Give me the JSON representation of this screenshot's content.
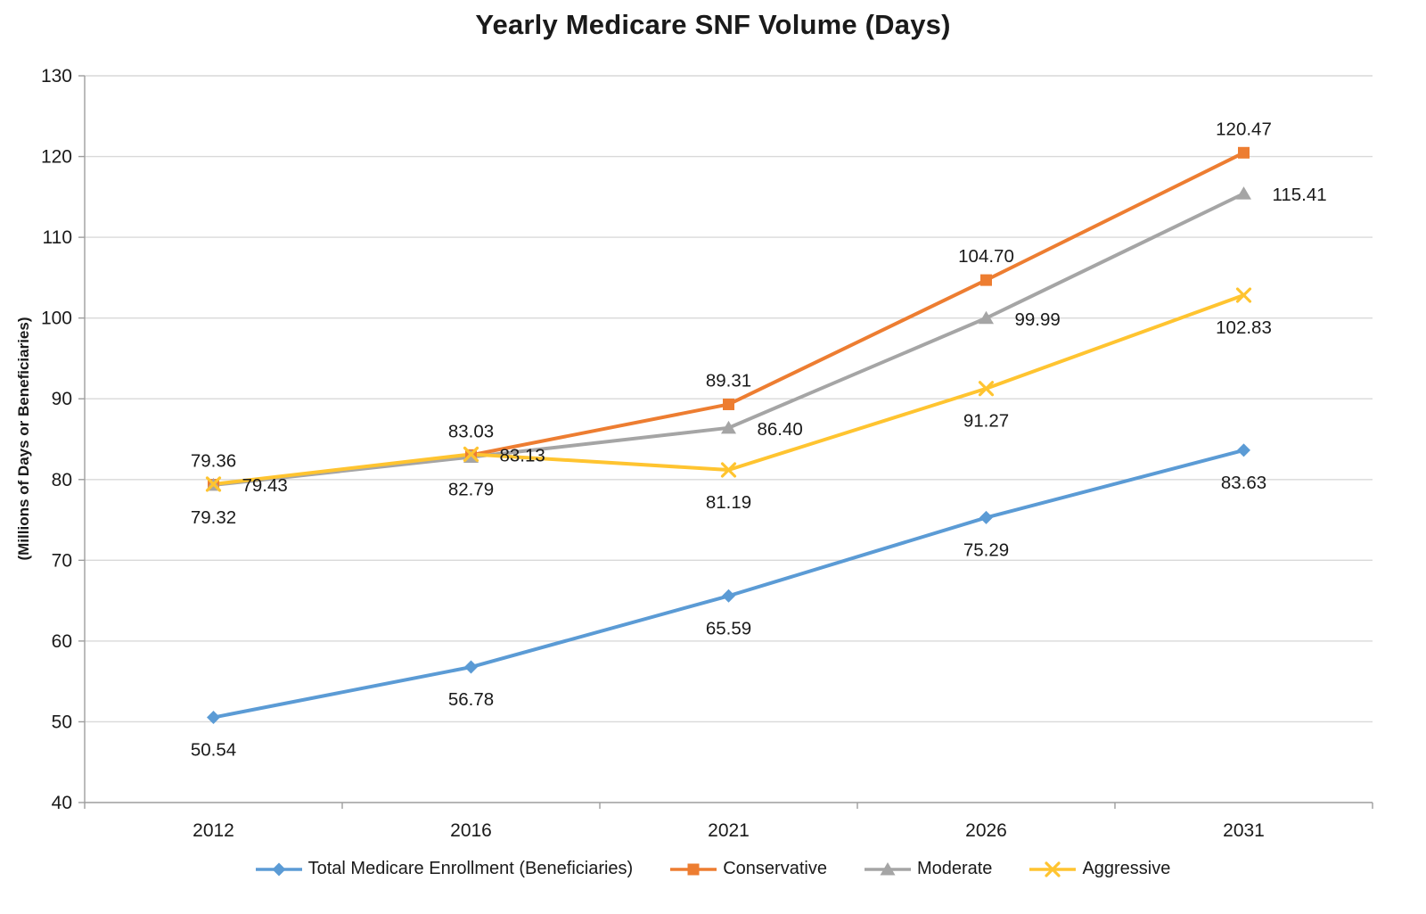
{
  "chart_data": {
    "type": "line",
    "title": "Yearly Medicare SNF Volume (Days)",
    "ylabel": "(Millions of Days or Beneficiaries)",
    "xlabel": "",
    "categories": [
      "2012",
      "2016",
      "2021",
      "2026",
      "2031"
    ],
    "ylim": [
      40,
      130
    ],
    "ytick_step": 10,
    "grid": true,
    "legend_position": "bottom",
    "colors": {
      "gridline": "#D9D9D9",
      "axis": "#9E9E9E",
      "text": "#1a1a1a"
    },
    "series": [
      {
        "name": "Total Medicare Enrollment (Beneficiaries)",
        "color": "#5B9BD5",
        "marker": "diamond",
        "values": [
          50.54,
          56.78,
          65.59,
          75.29,
          83.63
        ],
        "label_placement": [
          "below",
          "below",
          "below",
          "below",
          "below"
        ]
      },
      {
        "name": "Conservative",
        "color": "#ED7D31",
        "marker": "square",
        "values": [
          79.36,
          83.03,
          89.31,
          104.7,
          120.47
        ],
        "label_placement": [
          "above",
          "above",
          "above",
          "above",
          "above"
        ]
      },
      {
        "name": "Moderate",
        "color": "#A5A5A5",
        "marker": "triangle",
        "values": [
          79.32,
          82.79,
          86.4,
          99.99,
          115.41
        ],
        "label_placement": [
          "below",
          "below",
          "right",
          "right",
          "right"
        ]
      },
      {
        "name": "Aggressive",
        "color": "#FFC430",
        "marker": "x",
        "values": [
          79.43,
          83.13,
          81.19,
          91.27,
          102.83
        ],
        "label_placement": [
          "right",
          "right",
          "below",
          "below",
          "below"
        ]
      }
    ]
  }
}
